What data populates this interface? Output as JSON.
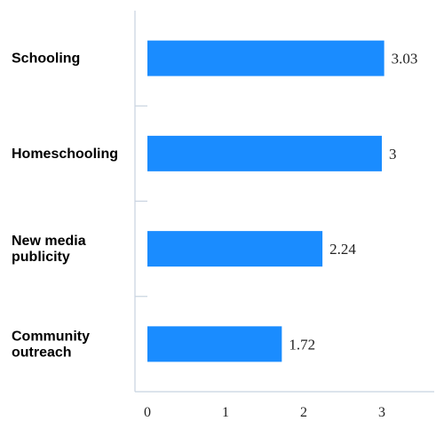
{
  "chart_data": {
    "type": "bar",
    "orientation": "horizontal",
    "categories": [
      [
        "Schooling"
      ],
      [
        "Homeschooling"
      ],
      [
        "New media",
        "publicity"
      ],
      [
        "Community",
        "outreach"
      ]
    ],
    "values": [
      3.03,
      3,
      2.24,
      1.72
    ],
    "value_labels": [
      "3.03",
      "3",
      "2.24",
      "1.72"
    ],
    "xticks": [
      "0",
      "1",
      "2",
      "3"
    ],
    "xlim": [
      0,
      3.7
    ],
    "bar_color": "#1a8cff",
    "grid": false,
    "legend": "none"
  }
}
